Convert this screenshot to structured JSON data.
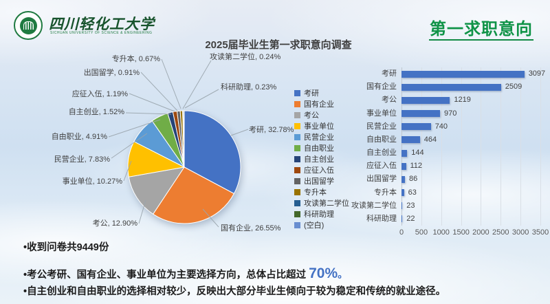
{
  "header": {
    "university_name": "四川轻化工大学",
    "university_subtitle": "SICHUAN UNIVERSITY OF SCIENCE & ENGINEERING",
    "slide_title": "第一求职意向"
  },
  "colors": {
    "accent_green": "#0F9347",
    "underline_green": "#128a45",
    "bar_blue": "#4472C4",
    "highlight_blue": "#4472C4"
  },
  "chart_data": [
    {
      "type": "pie",
      "title": "2025届毕业生第一求职意向调查",
      "legend_position": "right",
      "slices": [
        {
          "label": "考研",
          "pct": 32.78,
          "color": "#4472C4"
        },
        {
          "label": "国有企业",
          "pct": 26.55,
          "color": "#ED7D31"
        },
        {
          "label": "考公",
          "pct": 12.9,
          "color": "#A5A5A5"
        },
        {
          "label": "事业单位",
          "pct": 10.27,
          "color": "#FFC000"
        },
        {
          "label": "民营企业",
          "pct": 7.83,
          "color": "#5B9BD5"
        },
        {
          "label": "自由职业",
          "pct": 4.91,
          "color": "#70AD47"
        },
        {
          "label": "自主创业",
          "pct": 1.52,
          "color": "#264478"
        },
        {
          "label": "应征入伍",
          "pct": 1.19,
          "color": "#9E480E"
        },
        {
          "label": "出国留学",
          "pct": 0.91,
          "color": "#636363"
        },
        {
          "label": "专升本",
          "pct": 0.67,
          "color": "#997300"
        },
        {
          "label": "攻读第二学位",
          "pct": 0.24,
          "color": "#255E91"
        },
        {
          "label": "科研助理",
          "pct": 0.23,
          "color": "#43682B"
        },
        {
          "label": "(空白)",
          "pct": 0,
          "color": "#698ED0"
        }
      ]
    },
    {
      "type": "bar",
      "orientation": "horizontal",
      "categories": [
        "考研",
        "国有企业",
        "考公",
        "事业单位",
        "民营企业",
        "自由职业",
        "自主创业",
        "应征入伍",
        "出国留学",
        "专升本",
        "攻读第二学位",
        "科研助理"
      ],
      "values": [
        3097,
        2509,
        1219,
        970,
        740,
        464,
        144,
        112,
        86,
        63,
        23,
        22
      ],
      "xlim": [
        0,
        3500
      ],
      "x_ticks": [
        0,
        500,
        1000,
        1500,
        2000,
        2500,
        3000,
        3500
      ],
      "bar_color": "#4472C4",
      "grid": true
    }
  ],
  "notes": {
    "bullet1": "•收到问卷共9449份",
    "bullet2_prefix": "•考公考研、国有企业、事业单位为主要选择方向，总体占比超过 ",
    "bullet2_highlight": "70%",
    "bullet2_suffix": "。",
    "bullet3": "•自主创业和自由职业的选择相对较少，反映出大部分毕业生倾向于较为稳定和传统的就业途径。"
  }
}
